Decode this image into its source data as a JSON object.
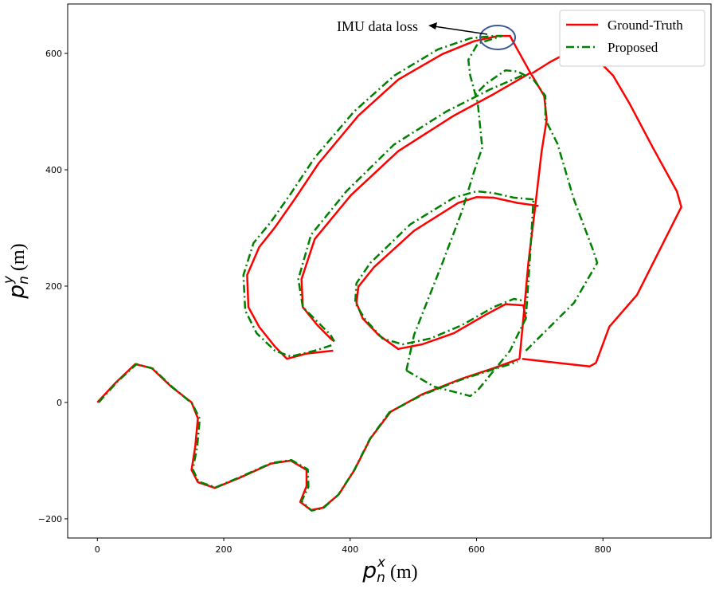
{
  "chart_data": {
    "type": "line",
    "annotation": "IMU data loss",
    "xlabel": {
      "symbol": "p",
      "sub": "n",
      "sup": "x",
      "unit": "(m)"
    },
    "ylabel": {
      "symbol": "p",
      "sub": "n",
      "sup": "y",
      "unit": "(m)"
    },
    "xlim": [
      -47,
      971
    ],
    "ylim": [
      -233,
      685
    ],
    "xticks": [
      0,
      200,
      400,
      600,
      800
    ],
    "yticks": [
      {
        "value": -200,
        "label": "−200"
      },
      0,
      200,
      400,
      600
    ],
    "legend": "upper right",
    "series": [
      {
        "name": "Ground-Truth",
        "color": "#ff0000",
        "dash": "solid",
        "x": [
          0,
          29,
          60,
          86,
          117,
          149,
          159,
          155,
          149,
          159,
          186,
          224,
          275,
          306,
          331,
          331,
          321,
          338,
          357,
          382,
          407,
          432,
          464,
          514,
          577,
          627,
          668,
          null,
          668,
          674,
          682,
          693,
          703,
          711,
          707,
          684,
          663,
          653,
          634,
          596,
          546,
          476,
          413,
          350,
          312,
          281,
          256,
          237,
          239,
          256,
          281,
          300,
          331,
          373,
          null,
          684,
          627,
          564,
          476,
          401,
          344,
          323,
          325,
          348,
          369,
          375,
          null,
          698,
          665,
          627,
          600,
          571,
          501,
          438,
          413,
          410,
          420,
          445,
          476,
          514,
          564,
          615,
          646,
          674,
          678,
          null,
          672,
          728,
          779,
          789,
          810,
          854,
          892,
          924,
          917,
          879,
          842,
          816,
          779,
          747,
          716,
          688
        ],
        "values": [
          0,
          34,
          66,
          59,
          27,
          0,
          -27,
          -75,
          -116,
          -137,
          -147,
          -130,
          -105,
          -100,
          -116,
          -144,
          -171,
          -185,
          -181,
          -158,
          -116,
          -62,
          -16,
          14,
          41,
          59,
          75,
          null,
          75,
          144,
          240,
          338,
          432,
          486,
          527,
          569,
          610,
          630,
          630,
          621,
          599,
          555,
          493,
          411,
          349,
          301,
          267,
          219,
          164,
          130,
          96,
          75,
          84,
          89,
          null,
          566,
          530,
          493,
          432,
          356,
          281,
          212,
          164,
          133,
          110,
          105,
          null,
          338,
          343,
          352,
          353,
          343,
          295,
          233,
          199,
          171,
          144,
          116,
          92,
          100,
          119,
          151,
          169,
          167,
          144,
          null,
          75,
          68,
          62,
          68,
          130,
          185,
          267,
          336,
          363,
          438,
          514,
          562,
          603,
          603,
          585,
          566
        ]
      },
      {
        "name": "Proposed",
        "color": "#008000",
        "dash": "dashdot",
        "x": [
          2,
          31,
          62,
          88,
          118,
          150,
          162,
          158,
          151,
          160,
          187,
          224,
          276,
          307,
          333,
          334,
          323,
          339,
          357,
          381,
          406,
          431,
          462,
          512,
          575,
          624,
          665,
          null,
          489,
          501,
          546,
          577,
          596,
          609,
          602,
          590,
          587,
          602,
          640,
          627,
          590,
          539,
          470,
          406,
          344,
          306,
          275,
          247,
          231,
          234,
          252,
          281,
          306,
          344,
          375,
          null,
          672,
          621,
          552,
          469,
          394,
          338,
          318,
          325,
          350,
          369,
          375,
          null,
          690,
          659,
          627,
          600,
          564,
          495,
          432,
          410,
          408,
          423,
          451,
          483,
          527,
          577,
          627,
          659,
          678,
          null,
          678,
          716,
          754,
          791,
          785,
          754,
          728,
          709,
          709,
          690,
          665,
          646,
          615,
          596,
          null,
          489,
          533,
          590,
          602,
          653,
          665,
          678,
          684,
          690
        ],
        "values": [
          0,
          35,
          66,
          58,
          27,
          -2,
          -28,
          -76,
          -115,
          -136,
          -146,
          -129,
          -104,
          -99,
          -115,
          -145,
          -170,
          -186,
          -182,
          -159,
          -117,
          -63,
          -17,
          12,
          39,
          56,
          70,
          null,
          55,
          116,
          240,
          329,
          397,
          438,
          514,
          562,
          589,
          617,
          630,
          630,
          626,
          607,
          562,
          500,
          421,
          359,
          311,
          274,
          219,
          158,
          119,
          89,
          79,
          89,
          100,
          null,
          562,
          538,
          500,
          443,
          363,
          288,
          212,
          164,
          137,
          116,
          105,
          null,
          349,
          352,
          360,
          363,
          352,
          306,
          240,
          205,
          171,
          144,
          110,
          100,
          110,
          133,
          164,
          178,
          174,
          null,
          89,
          130,
          171,
          240,
          260,
          349,
          445,
          486,
          527,
          555,
          569,
          571,
          548,
          527,
          null,
          55,
          27,
          11,
          21,
          89,
          116,
          144,
          240,
          349
        ]
      }
    ]
  }
}
